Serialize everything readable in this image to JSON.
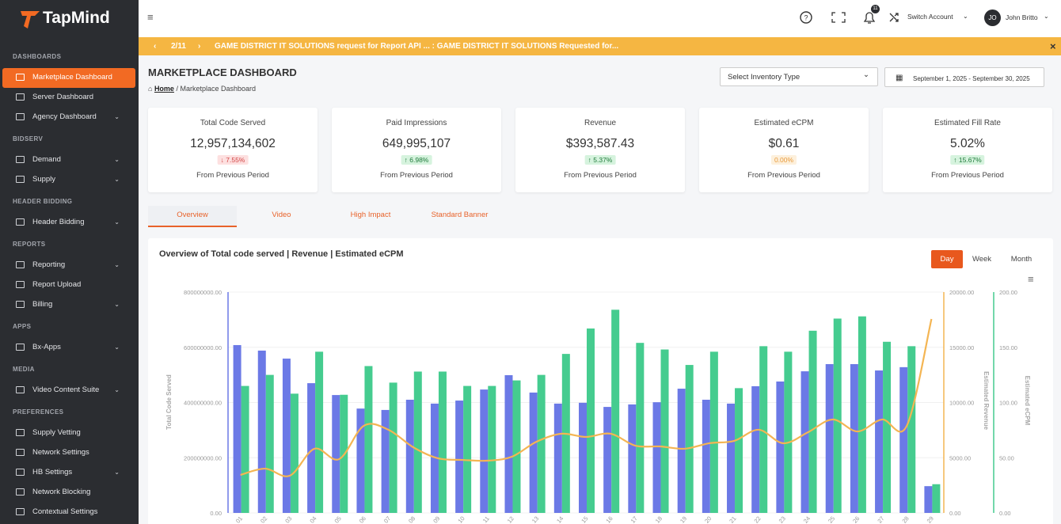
{
  "brand": "TapMind",
  "sidebar": {
    "sections": [
      {
        "title": "DASHBOARDS",
        "items": [
          {
            "label": "Marketplace Dashboard",
            "active": true
          },
          {
            "label": "Server Dashboard"
          },
          {
            "label": "Agency Dashboard",
            "arrow": true
          }
        ]
      },
      {
        "title": "BIDSERV",
        "items": [
          {
            "label": "Demand",
            "arrow": true
          },
          {
            "label": "Supply",
            "arrow": true
          }
        ]
      },
      {
        "title": "HEADER BIDDING",
        "items": [
          {
            "label": "Header Bidding",
            "arrow": true
          }
        ]
      },
      {
        "title": "REPORTS",
        "items": [
          {
            "label": "Reporting",
            "arrow": true
          },
          {
            "label": "Report Upload"
          },
          {
            "label": "Billing",
            "arrow": true
          }
        ]
      },
      {
        "title": "APPS",
        "items": [
          {
            "label": "Bx-Apps",
            "arrow": true
          }
        ]
      },
      {
        "title": "MEDIA",
        "items": [
          {
            "label": "Video Content Suite",
            "arrow": true
          }
        ]
      },
      {
        "title": "PREFERENCES",
        "items": [
          {
            "label": "Supply Vetting"
          },
          {
            "label": "Network Settings"
          },
          {
            "label": "HB Settings",
            "arrow": true
          },
          {
            "label": "Network Blocking"
          },
          {
            "label": "Contextual Settings"
          }
        ]
      }
    ]
  },
  "header": {
    "notification_count": "11",
    "switch_account": "Switch Account",
    "avatar": "JO",
    "user": "John Britto"
  },
  "notification": {
    "counter": "2/11",
    "message": "GAME DISTRICT IT SOLUTIONS request for Report API ... : GAME DISTRICT IT SOLUTIONS Requested for..."
  },
  "page": {
    "title": "MARKETPLACE DASHBOARD",
    "breadcrumb": {
      "home": "Home",
      "current": "/ Marketplace Dashboard"
    },
    "select": "Select Inventory Type",
    "date_range": "September 1, 2025 - September 30, 2025"
  },
  "stats": [
    {
      "label": "Total Code Served",
      "value": "12,957,134,602",
      "change": "7.55%",
      "trend": "down",
      "footer": "From Previous Period"
    },
    {
      "label": "Paid Impressions",
      "value": "649,995,107",
      "change": "6.98%",
      "trend": "up",
      "footer": "From Previous Period"
    },
    {
      "label": "Revenue",
      "value": "$393,587.43",
      "change": "5.37%",
      "trend": "up",
      "footer": "From Previous Period"
    },
    {
      "label": "Estimated eCPM",
      "value": "$0.61",
      "change": "0.00%",
      "trend": "flat",
      "footer": "From Previous Period"
    },
    {
      "label": "Estimated Fill Rate",
      "value": "5.02%",
      "change": "15.67%",
      "trend": "up",
      "footer": "From Previous Period"
    }
  ],
  "tabs": [
    {
      "label": "Overview",
      "active": true
    },
    {
      "label": "Video"
    },
    {
      "label": "High Impact"
    },
    {
      "label": "Standard Banner"
    }
  ],
  "periods": [
    {
      "label": "Day",
      "active": true
    },
    {
      "label": "Week"
    },
    {
      "label": "Month"
    }
  ],
  "chart_data": {
    "type": "bar",
    "title": "Overview of Total code served | Revenue | Estimated eCPM",
    "categories": [
      "01",
      "02",
      "03",
      "04",
      "05",
      "06",
      "07",
      "08",
      "09",
      "10",
      "11",
      "12",
      "13",
      "14",
      "15",
      "16",
      "17",
      "18",
      "19",
      "20",
      "21",
      "22",
      "23",
      "24",
      "25",
      "26",
      "27",
      "28",
      "29"
    ],
    "y_label": "Total Code Served",
    "y2_label": "Estimated Revenue",
    "y3_label": "Estimated eCPM",
    "ylim": [
      0,
      800000000
    ],
    "yticks": [
      {
        "value": 0,
        "label": "0.00"
      },
      {
        "value": 200000000,
        "label": "200000000.00"
      },
      {
        "value": 400000000,
        "label": "400000000.00"
      },
      {
        "value": 600000000,
        "label": "600000000.00"
      },
      {
        "value": 800000000,
        "label": "800000000.00"
      }
    ],
    "y2lim": [
      0,
      20000
    ],
    "y2ticks": [
      {
        "value": 0,
        "label": "0.00"
      },
      {
        "value": 5000,
        "label": "5000.00"
      },
      {
        "value": 10000,
        "label": "10000.00"
      },
      {
        "value": 15000,
        "label": "15000.00"
      },
      {
        "value": 20000,
        "label": "20000.00"
      }
    ],
    "y3lim": [
      0,
      200
    ],
    "y3ticks": [
      {
        "value": 0,
        "label": "0.00"
      },
      {
        "value": 50,
        "label": "50.00"
      },
      {
        "value": 100,
        "label": "100.00"
      },
      {
        "value": 150,
        "label": "150.00"
      },
      {
        "value": 200,
        "label": "200.00"
      }
    ],
    "grid": true,
    "series": [
      {
        "type": "bar",
        "axis": "y",
        "color": "#6b79e6",
        "values": [
          608000000,
          588000000,
          559000000,
          470000000,
          427000000,
          378000000,
          373000000,
          410000000,
          396000000,
          407000000,
          447000000,
          499000000,
          436000000,
          396000000,
          399000000,
          384000000,
          393000000,
          401000000,
          450000000,
          410000000,
          396000000,
          459000000,
          476000000,
          513000000,
          539000000,
          539000000,
          516000000,
          528000000,
          97000000
        ]
      },
      {
        "type": "bar",
        "axis": "y3",
        "color": "#45cc8f",
        "values": [
          115,
          125,
          108,
          146,
          107,
          133,
          118,
          128,
          128,
          115,
          115,
          120,
          125,
          144,
          167,
          184,
          154,
          148,
          134,
          146,
          113,
          151,
          146,
          165,
          176,
          178,
          155,
          151,
          26
        ]
      },
      {
        "type": "line",
        "axis": "y2",
        "color": "#f4b553",
        "values": [
          3440,
          4010,
          3370,
          5810,
          4870,
          7890,
          7530,
          5950,
          4950,
          4800,
          4730,
          5090,
          6450,
          7170,
          6880,
          7170,
          6090,
          6020,
          5810,
          6310,
          6520,
          7530,
          6310,
          7310,
          8460,
          7380,
          8460,
          7890,
          17560
        ]
      }
    ]
  }
}
